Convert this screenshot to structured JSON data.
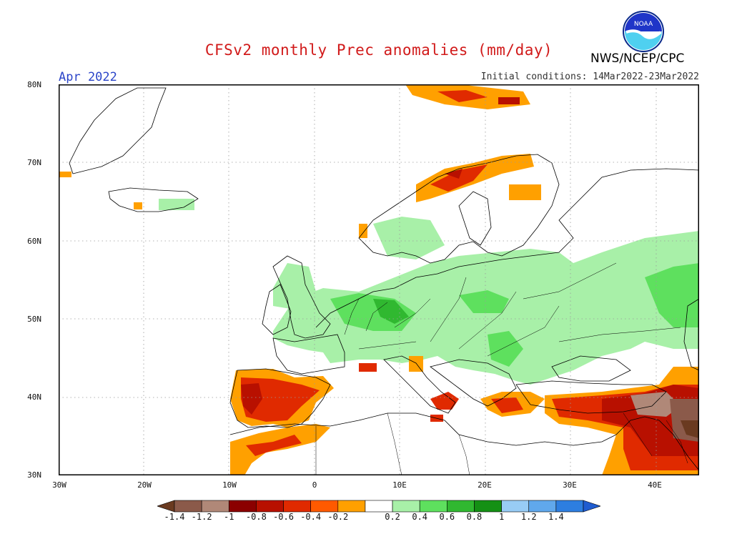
{
  "header": {
    "title": "CFSv2 monthly Prec anomalies (mm/day)",
    "month": "Apr 2022",
    "initial_conditions": "Initial conditions: 14Mar2022-23Mar2022",
    "agency": "NWS/NCEP/CPC",
    "logo_text": "NOAA"
  },
  "axes": {
    "lat_labels": [
      "80N",
      "70N",
      "60N",
      "50N",
      "40N",
      "30N"
    ],
    "lon_labels": [
      "30W",
      "20W",
      "10W",
      "0",
      "10E",
      "20E",
      "30E",
      "40E"
    ]
  },
  "legend": {
    "labels": [
      "-1.4",
      "-1.2",
      "-1",
      "-0.8",
      "-0.6",
      "-0.4",
      "-0.2",
      "0.2",
      "0.4",
      "0.6",
      "0.8",
      "1",
      "1.2",
      "1.4"
    ],
    "colors": [
      "#6a3a20",
      "#8b5a4a",
      "#b08878",
      "#8b0000",
      "#b81000",
      "#e02a00",
      "#ff5a00",
      "#ffa000",
      "#ffffff",
      "#a8f0a8",
      "#5ee05e",
      "#30b830",
      "#149014",
      "#98ccf5",
      "#60a8ec",
      "#2d7ee0",
      "#1f5cd0"
    ]
  },
  "map": {
    "extent": {
      "lon_min": -30,
      "lon_max": 45,
      "lat_min": 30,
      "lat_max": 80
    },
    "regions": {
      "wet_central_europe": "light-green",
      "dry_iberia": "red-orange",
      "dry_scandinavia_coast": "red-orange",
      "dry_middle_east": "dark-red-brown",
      "wet_eastern_russia": "light-green"
    }
  }
}
